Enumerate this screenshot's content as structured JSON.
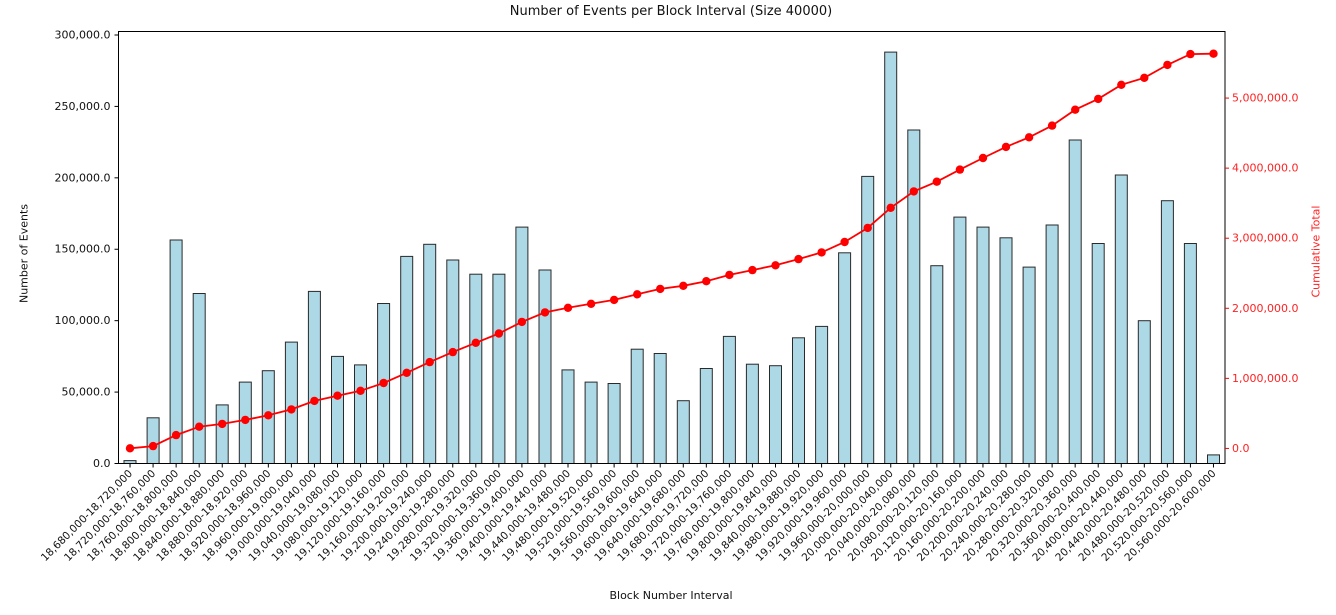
{
  "figure": {
    "title": "Number of Events per Block Interval (Size 40000)",
    "background_color": "#ffffff"
  },
  "chart_data": {
    "type": "bar",
    "title": "Number of Events per Block Interval (Size 40000)",
    "xlabel": "Block Number Interval",
    "ylabel_left": "Number of Events",
    "ylabel_right": "Cumulative Total",
    "legend_position": "none",
    "grid": false,
    "colors": {
      "bar_fill": "#ADD8E6",
      "bar_edge": "#2a2a2a",
      "line_color": "#ff0000",
      "right_axis_text": "#ff2222",
      "axis_text": "#111111",
      "spine": "#000000"
    },
    "categories": [
      "18,680,000-18,720,000",
      "18,720,000-18,760,000",
      "18,760,000-18,800,000",
      "18,800,000-18,840,000",
      "18,840,000-18,880,000",
      "18,880,000-18,920,000",
      "18,920,000-18,960,000",
      "18,960,000-19,000,000",
      "19,000,000-19,040,000",
      "19,040,000-19,080,000",
      "19,080,000-19,120,000",
      "19,120,000-19,160,000",
      "19,160,000-19,200,000",
      "19,200,000-19,240,000",
      "19,240,000-19,280,000",
      "19,280,000-19,320,000",
      "19,320,000-19,360,000",
      "19,360,000-19,400,000",
      "19,400,000-19,440,000",
      "19,440,000-19,480,000",
      "19,480,000-19,520,000",
      "19,520,000-19,560,000",
      "19,560,000-19,600,000",
      "19,600,000-19,640,000",
      "19,640,000-19,680,000",
      "19,680,000-19,720,000",
      "19,720,000-19,760,000",
      "19,760,000-19,800,000",
      "19,800,000-19,840,000",
      "19,840,000-19,880,000",
      "19,880,000-19,920,000",
      "19,920,000-19,960,000",
      "19,960,000-20,000,000",
      "20,000,000-20,040,000",
      "20,040,000-20,080,000",
      "20,080,000-20,120,000",
      "20,120,000-20,160,000",
      "20,160,000-20,200,000",
      "20,200,000-20,240,000",
      "20,240,000-20,280,000",
      "20,280,000-20,320,000",
      "20,320,000-20,360,000",
      "20,360,000-20,400,000",
      "20,400,000-20,440,000",
      "20,440,000-20,480,000",
      "20,480,000-20,520,000",
      "20,520,000-20,560,000",
      "20,560,000-20,600,000"
    ],
    "series": [
      {
        "name": "Number of Events",
        "type": "bar",
        "axis": "left",
        "values": [
          2000,
          32000,
          156500,
          119000,
          41000,
          57000,
          65000,
          85000,
          120500,
          75000,
          69000,
          112000,
          145000,
          153500,
          142500,
          132500,
          132500,
          165500,
          135500,
          65500,
          57000,
          56000,
          80000,
          77000,
          44000,
          66500,
          89000,
          69500,
          68500,
          88000,
          96000,
          147500,
          201000,
          288000,
          233500,
          138500,
          172500,
          165500,
          158000,
          137500,
          167000,
          226500,
          154000,
          202000,
          100000,
          184000,
          154000,
          6000
        ]
      },
      {
        "name": "Cumulative Total",
        "type": "line",
        "axis": "right",
        "marker": "circle",
        "values": [
          2000,
          34000,
          190500,
          309500,
          350500,
          407500,
          472500,
          557500,
          678000,
          753000,
          822000,
          934000,
          1079000,
          1232500,
          1375000,
          1507500,
          1640000,
          1805500,
          1941000,
          2006500,
          2063500,
          2119500,
          2199500,
          2276500,
          2320500,
          2387000,
          2476000,
          2545500,
          2614000,
          2702000,
          2798000,
          2945500,
          3146500,
          3434500,
          3668000,
          3806500,
          3979000,
          4144500,
          4302500,
          4440000,
          4607000,
          4833500,
          4987500,
          5189500,
          5289500,
          5473500,
          5627500,
          5633500
        ]
      }
    ],
    "left_axis": {
      "tick_values": [
        0,
        50000,
        100000,
        150000,
        200000,
        250000,
        300000
      ],
      "tick_labels": [
        "0.0",
        "50,000.0",
        "100,000.0",
        "150,000.0",
        "200,000.0",
        "250,000.0",
        "300,000.0"
      ],
      "range": [
        0,
        302450
      ]
    },
    "right_axis": {
      "tick_values": [
        0,
        1000000,
        2000000,
        3000000,
        4000000,
        5000000
      ],
      "tick_labels": [
        "0.0",
        "1,000,000.0",
        "2,000,000.0",
        "3,000,000.0",
        "4,000,000.0",
        "5,000,000.0"
      ],
      "range": [
        -215000,
        5950000
      ]
    }
  }
}
